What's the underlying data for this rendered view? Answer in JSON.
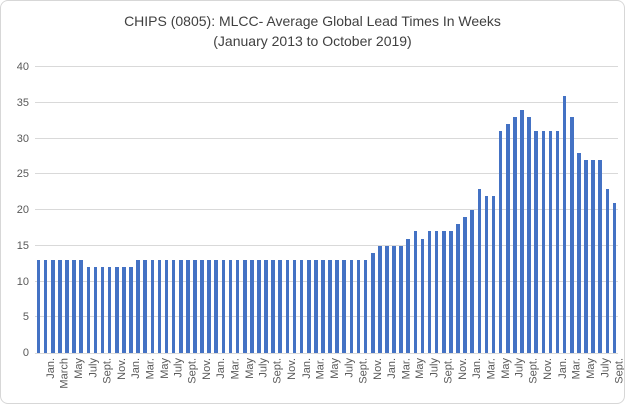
{
  "title": {
    "line1": "CHIPS (0805): MLCC- Average Global Lead Times In Weeks",
    "line2": "(January 2013 to October 2019)"
  },
  "colors": {
    "bar": "#4472c4",
    "gridline": "#d9d9d9",
    "axis_text": "#595959",
    "title_text": "#404040",
    "frame_border": "#d7d7d7"
  },
  "chart_data": {
    "type": "bar",
    "title": "CHIPS (0805): MLCC- Average Global Lead Times In Weeks",
    "subtitle": "(January 2013 to October 2019)",
    "xlabel": "",
    "ylabel": "",
    "x_start": "January 2013",
    "x_end": "October 2019",
    "ylim": [
      0,
      40
    ],
    "yticks": [
      0,
      5,
      10,
      15,
      20,
      25,
      30,
      35,
      40
    ],
    "ytick_labels": [
      "0",
      "5",
      "10",
      "15",
      "20",
      "25",
      "30",
      "35",
      "40"
    ],
    "grid": true,
    "legend": false,
    "series_name": "Average global lead time (weeks)",
    "values": [
      13,
      13,
      13,
      13,
      13,
      13,
      13,
      12,
      12,
      12,
      12,
      12,
      12,
      12,
      13,
      13,
      13,
      13,
      13,
      13,
      13,
      13,
      13,
      13,
      13,
      13,
      13,
      13,
      13,
      13,
      13,
      13,
      13,
      13,
      13,
      13,
      13,
      13,
      13,
      13,
      13,
      13,
      13,
      13,
      13,
      13,
      13,
      14,
      15,
      15,
      15,
      15,
      16,
      17,
      16,
      17,
      17,
      17,
      17,
      18,
      19,
      20,
      23,
      22,
      22,
      31,
      32,
      33,
      34,
      33,
      31,
      31,
      31,
      31,
      36,
      33,
      28,
      27,
      27,
      27,
      23,
      21
    ],
    "xtick_every": 2,
    "xtick_labels": [
      "Jan.",
      "March",
      "May",
      "July",
      "Sept.",
      "Nov.",
      "Jan.",
      "Mar.",
      "May",
      "July",
      "Sept.",
      "Nov.",
      "Jan.",
      "Mar.",
      "May",
      "July",
      "Sept.",
      "Nov.",
      "Jan.",
      "Mar.",
      "May",
      "July",
      "Sept.",
      "Nov.",
      "Jan.",
      "Mar.",
      "May",
      "July",
      "Sept.",
      "Nov.",
      "Jan.",
      "Mar.",
      "May",
      "July",
      "Sept.",
      "Nov.",
      "Jan.",
      "Mar.",
      "May",
      "July",
      "Sept."
    ]
  }
}
